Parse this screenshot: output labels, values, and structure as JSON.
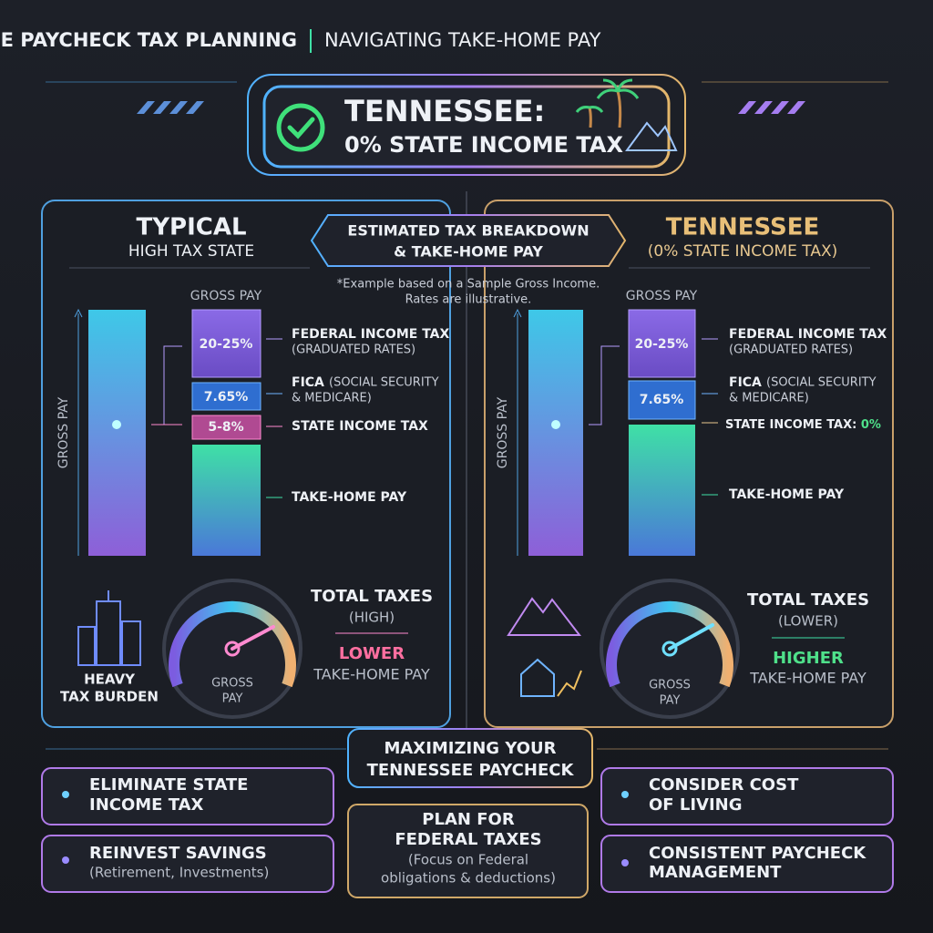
{
  "header": {
    "title": "TENNESSEE PAYCHECK TAX PLANNING",
    "subtitle": "NAVIGATING TAKE-HOME PAY"
  },
  "banner": {
    "line1": "TENNESSEE:",
    "line2": "0% STATE INCOME TAX"
  },
  "center": {
    "title_lines": [
      "ESTIMATED TAX BREAKDOWN",
      "& TAKE-HOME PAY"
    ],
    "note_lines": [
      "*Example based on a Sample Gross Income.",
      "Rates are illustrative."
    ]
  },
  "left": {
    "title": "TYPICAL",
    "subtitle": "HIGH TAX STATE",
    "axis_label": "GROSS PAY",
    "stack_label": "GROSS PAY",
    "federal": {
      "value_label": "20-25%",
      "label": "FEDERAL INCOME TAX",
      "sublabel": "(GRADUATED RATES)"
    },
    "fica": {
      "value_label": "7.65%",
      "label": "FICA",
      "sublabel_lines": [
        "(SOCIAL SECURITY",
        "& MEDICARE)"
      ]
    },
    "state": {
      "value_label": "5-8%",
      "label": "STATE INCOME TAX"
    },
    "take_home": "TAKE-HOME PAY",
    "icon_label_lines": [
      "HEAVY",
      "TAX BURDEN"
    ],
    "gauge_label_lines": [
      "GROSS",
      "PAY"
    ],
    "total": {
      "title": "TOTAL TAXES",
      "level": "(HIGH)",
      "result": "LOWER",
      "result_label": "TAKE-HOME PAY"
    }
  },
  "right": {
    "title": "TENNESSEE",
    "subtitle": "(0% STATE INCOME TAX)",
    "axis_label": "GROSS PAY",
    "stack_label": "GROSS PAY",
    "federal": {
      "value_label": "20-25%",
      "label": "FEDERAL INCOME TAX",
      "sublabel": "(GRADUATED RATES)"
    },
    "fica": {
      "value_label": "7.65%",
      "label": "FICA",
      "sublabel_lines": [
        "(SOCIAL SECURITY",
        "& MEDICARE)"
      ]
    },
    "state": {
      "label": "STATE INCOME TAX:",
      "value_label": "0%"
    },
    "take_home": "TAKE-HOME PAY",
    "gauge_label_lines": [
      "GROSS",
      "PAY"
    ],
    "total": {
      "title": "TOTAL TAXES",
      "level": "(LOWER)",
      "result": "HIGHER",
      "result_label": "TAKE-HOME PAY"
    }
  },
  "footer": {
    "title_lines": [
      "MAXIMIZING YOUR",
      "TENNESSEE PAYCHECK"
    ],
    "tips": [
      {
        "lines": [
          "ELIMINATE STATE",
          "INCOME TAX"
        ]
      },
      {
        "lines": [
          "REINVEST SAVINGS"
        ],
        "note": "(Retirement, Investments)"
      },
      {
        "lines": [
          "PLAN FOR",
          "FEDERAL TAXES"
        ],
        "note_lines": [
          "(Focus on Federal",
          "obligations & deductions)"
        ]
      },
      {
        "lines": [
          "CONSIDER COST",
          "OF LIVING"
        ]
      },
      {
        "lines": [
          "CONSISTENT PAYCHECK",
          "MANAGEMENT"
        ]
      }
    ]
  }
}
